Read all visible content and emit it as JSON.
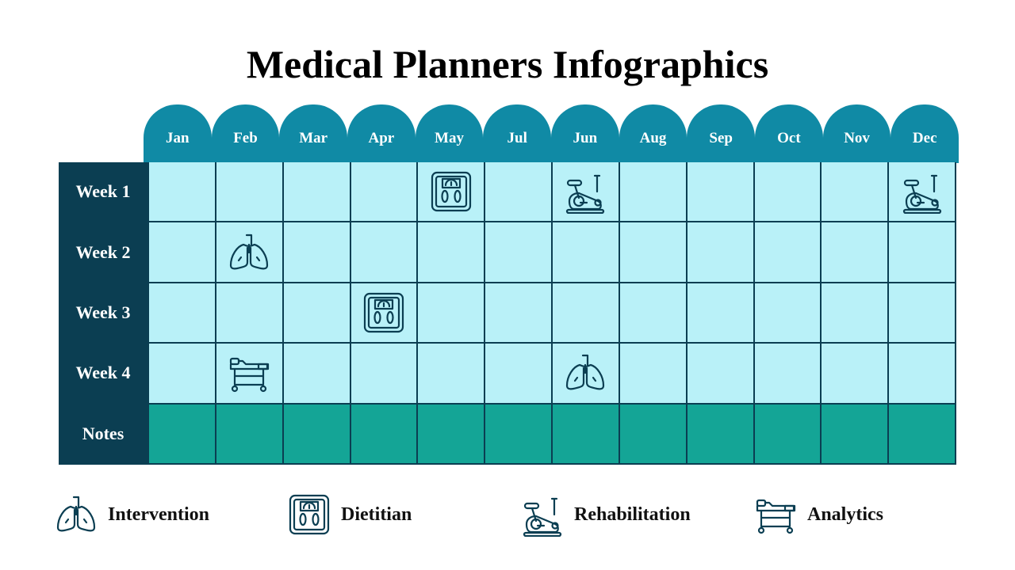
{
  "title": "Medical Planners Infographics",
  "months": [
    "Jan",
    "Feb",
    "Mar",
    "Apr",
    "May",
    "Jul",
    "Jun",
    "Aug",
    "Sep",
    "Oct",
    "Nov",
    "Dec"
  ],
  "rows": [
    "Week 1",
    "Week 2",
    "Week 3",
    "Week 4",
    "Notes"
  ],
  "colors": {
    "header": "#108aa5",
    "sidebar": "#0b3e52",
    "cell": "#b9f1f8",
    "notes": "#14a596"
  },
  "placements": [
    {
      "row": 0,
      "col": 4,
      "icon": "scale"
    },
    {
      "row": 0,
      "col": 6,
      "icon": "bike"
    },
    {
      "row": 0,
      "col": 11,
      "icon": "bike"
    },
    {
      "row": 1,
      "col": 1,
      "icon": "lungs"
    },
    {
      "row": 2,
      "col": 3,
      "icon": "scale"
    },
    {
      "row": 3,
      "col": 1,
      "icon": "bed"
    },
    {
      "row": 3,
      "col": 6,
      "icon": "lungs"
    }
  ],
  "legend": [
    {
      "icon": "lungs",
      "label": "Intervention"
    },
    {
      "icon": "scale",
      "label": "Dietitian"
    },
    {
      "icon": "bike",
      "label": "Rehabilitation"
    },
    {
      "icon": "bed",
      "label": "Analytics"
    }
  ]
}
